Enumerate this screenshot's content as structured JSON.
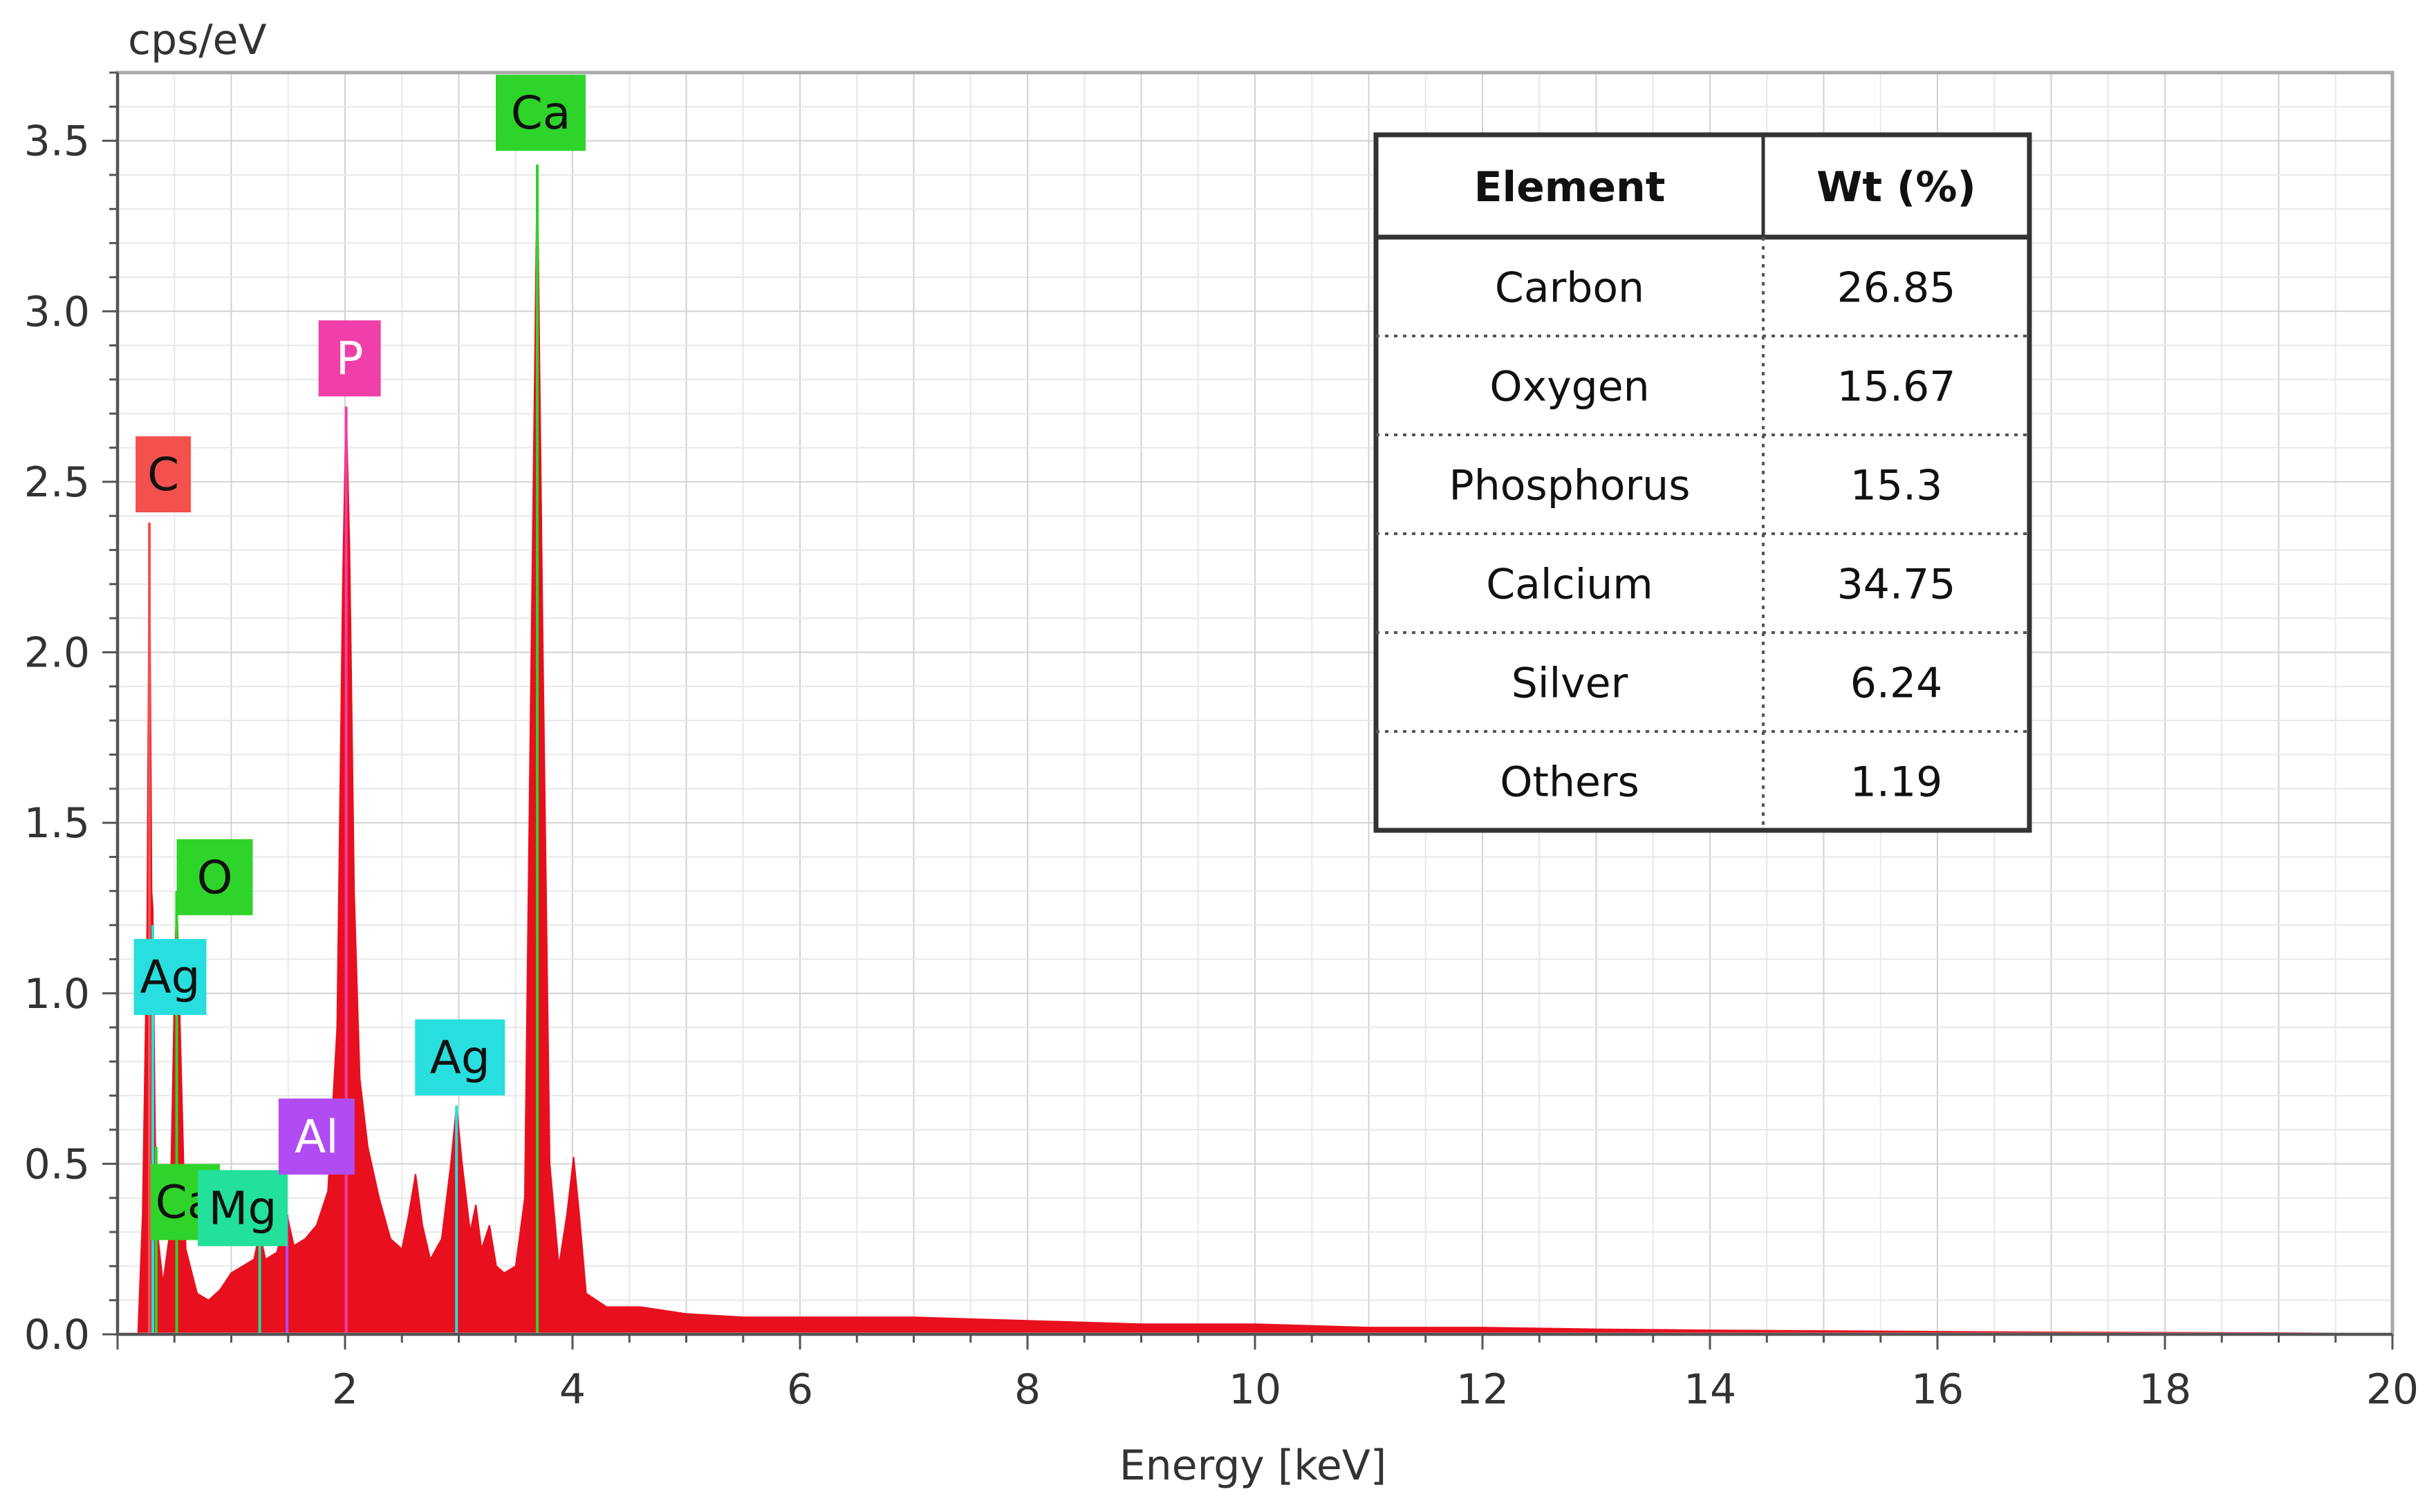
{
  "chart_data": {
    "type": "area",
    "ylabel": "cps/eV",
    "xlabel": "Energy [keV]",
    "xlim": [
      0.0,
      20.0
    ],
    "ylim": [
      0.0,
      3.7
    ],
    "xticks": [
      "2",
      "4",
      "6",
      "8",
      "10",
      "12",
      "14",
      "16",
      "18",
      "20"
    ],
    "yticks": [
      "0.0",
      "0.5",
      "1.0",
      "1.5",
      "2.0",
      "2.5",
      "3.0",
      "3.5"
    ],
    "grid": true,
    "spectrum_color": "#e8101e",
    "peaks": [
      {
        "label": "C",
        "x": 0.28,
        "y": 2.38,
        "color": "#f4504e"
      },
      {
        "label": "O",
        "x": 0.52,
        "y": 1.3,
        "color": "#2fd42a"
      },
      {
        "label": "Ag",
        "x": 0.31,
        "y": 1.2,
        "color": "#29dede"
      },
      {
        "label": "Ca",
        "x": 0.34,
        "y": 0.55,
        "color": "#2fd42a"
      },
      {
        "label": "Mg",
        "x": 1.25,
        "y": 0.3,
        "color": "#23e09a"
      },
      {
        "label": "Al",
        "x": 1.49,
        "y": 0.35,
        "color": "#b14cf2"
      },
      {
        "label": "P",
        "x": 2.01,
        "y": 2.72,
        "color": "#f03fa8"
      },
      {
        "label": "Ag",
        "x": 2.98,
        "y": 0.67,
        "color": "#29dede"
      },
      {
        "label": "Ca",
        "x": 3.69,
        "y": 3.43,
        "color": "#2fd42a"
      }
    ],
    "spectrum": [
      [
        0.0,
        0.0
      ],
      [
        0.18,
        0.0
      ],
      [
        0.22,
        0.35
      ],
      [
        0.26,
        1.2
      ],
      [
        0.28,
        2.38
      ],
      [
        0.3,
        1.3
      ],
      [
        0.31,
        1.25
      ],
      [
        0.33,
        0.6
      ],
      [
        0.35,
        0.3
      ],
      [
        0.4,
        0.15
      ],
      [
        0.46,
        0.3
      ],
      [
        0.5,
        1.0
      ],
      [
        0.52,
        1.3
      ],
      [
        0.55,
        0.9
      ],
      [
        0.6,
        0.25
      ],
      [
        0.7,
        0.12
      ],
      [
        0.8,
        0.1
      ],
      [
        0.9,
        0.13
      ],
      [
        1.0,
        0.18
      ],
      [
        1.1,
        0.2
      ],
      [
        1.2,
        0.22
      ],
      [
        1.25,
        0.3
      ],
      [
        1.3,
        0.22
      ],
      [
        1.4,
        0.24
      ],
      [
        1.49,
        0.35
      ],
      [
        1.55,
        0.26
      ],
      [
        1.65,
        0.28
      ],
      [
        1.75,
        0.32
      ],
      [
        1.85,
        0.42
      ],
      [
        1.93,
        0.9
      ],
      [
        1.98,
        2.2
      ],
      [
        2.01,
        2.72
      ],
      [
        2.04,
        2.3
      ],
      [
        2.08,
        1.3
      ],
      [
        2.13,
        0.75
      ],
      [
        2.2,
        0.55
      ],
      [
        2.3,
        0.4
      ],
      [
        2.4,
        0.28
      ],
      [
        2.5,
        0.25
      ],
      [
        2.56,
        0.35
      ],
      [
        2.62,
        0.47
      ],
      [
        2.68,
        0.32
      ],
      [
        2.75,
        0.22
      ],
      [
        2.85,
        0.28
      ],
      [
        2.93,
        0.5
      ],
      [
        2.98,
        0.67
      ],
      [
        3.03,
        0.5
      ],
      [
        3.1,
        0.3
      ],
      [
        3.15,
        0.38
      ],
      [
        3.2,
        0.25
      ],
      [
        3.27,
        0.32
      ],
      [
        3.33,
        0.2
      ],
      [
        3.4,
        0.18
      ],
      [
        3.5,
        0.2
      ],
      [
        3.58,
        0.4
      ],
      [
        3.63,
        1.8
      ],
      [
        3.69,
        3.43
      ],
      [
        3.74,
        2.0
      ],
      [
        3.8,
        0.5
      ],
      [
        3.88,
        0.2
      ],
      [
        3.95,
        0.35
      ],
      [
        4.01,
        0.52
      ],
      [
        4.06,
        0.35
      ],
      [
        4.12,
        0.12
      ],
      [
        4.3,
        0.08
      ],
      [
        4.6,
        0.08
      ],
      [
        5.0,
        0.06
      ],
      [
        5.5,
        0.05
      ],
      [
        6.0,
        0.05
      ],
      [
        7.0,
        0.05
      ],
      [
        8.0,
        0.04
      ],
      [
        9.0,
        0.03
      ],
      [
        10.0,
        0.03
      ],
      [
        11.0,
        0.02
      ],
      [
        12.0,
        0.02
      ],
      [
        13.0,
        0.015
      ],
      [
        14.0,
        0.012
      ],
      [
        15.0,
        0.01
      ],
      [
        16.0,
        0.008
      ],
      [
        17.0,
        0.006
      ],
      [
        18.0,
        0.005
      ],
      [
        19.0,
        0.004
      ],
      [
        19.5,
        0.003
      ],
      [
        19.8,
        0.0
      ],
      [
        20.0,
        0.0
      ]
    ]
  },
  "table": {
    "headers": [
      "Element",
      "Wt (%)"
    ],
    "rows": [
      [
        "Carbon",
        "26.85"
      ],
      [
        "Oxygen",
        "15.67"
      ],
      [
        "Phosphorus",
        "15.3"
      ],
      [
        "Calcium",
        "34.75"
      ],
      [
        "Silver",
        "6.24"
      ],
      [
        "Others",
        "1.19"
      ]
    ]
  }
}
